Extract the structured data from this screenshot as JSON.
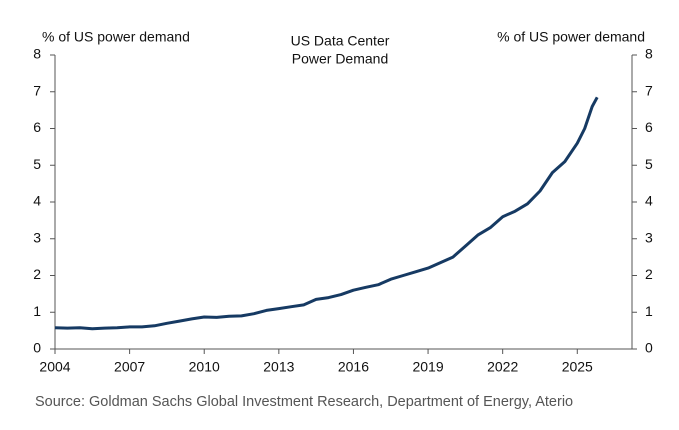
{
  "chart_data": {
    "type": "line",
    "title": [
      "US Data Center",
      "Power Demand"
    ],
    "ylabel": "% of US power demand",
    "y2label": "% of US power demand",
    "source": "Source: Goldman Sachs Global Investment Research, Department of Energy, Aterio",
    "x": [
      2004,
      2004.5,
      2005,
      2005.5,
      2006,
      2006.5,
      2007,
      2007.5,
      2008,
      2008.5,
      2009,
      2009.5,
      2010,
      2010.5,
      2011,
      2011.5,
      2012,
      2012.5,
      2013,
      2013.5,
      2014,
      2014.5,
      2015,
      2015.5,
      2016,
      2016.5,
      2017,
      2017.5,
      2018,
      2018.5,
      2019,
      2019.5,
      2020,
      2020.5,
      2021,
      2021.5,
      2022,
      2022.5,
      2023,
      2023.5,
      2024,
      2024.5,
      2025,
      2025.3,
      2025.6,
      2025.8
    ],
    "series": [
      {
        "name": "US Data Center Power Demand",
        "color": "#163a63",
        "values": [
          0.58,
          0.57,
          0.58,
          0.55,
          0.57,
          0.58,
          0.6,
          0.6,
          0.63,
          0.7,
          0.76,
          0.82,
          0.87,
          0.86,
          0.89,
          0.9,
          0.96,
          1.05,
          1.1,
          1.15,
          1.2,
          1.35,
          1.4,
          1.48,
          1.6,
          1.68,
          1.75,
          1.9,
          2.0,
          2.1,
          2.2,
          2.35,
          2.5,
          2.8,
          3.1,
          3.3,
          3.6,
          3.75,
          3.95,
          4.3,
          4.8,
          5.1,
          5.6,
          6.0,
          6.6,
          6.85
        ]
      }
    ],
    "xlim": [
      2004,
      2027.2
    ],
    "xticks": [
      2004,
      2007,
      2010,
      2013,
      2016,
      2019,
      2022,
      2025
    ],
    "ylim": [
      0,
      8
    ],
    "yticks": [
      0,
      1,
      2,
      3,
      4,
      5,
      6,
      7,
      8
    ],
    "y2lim": [
      0,
      8
    ],
    "y2ticks": [
      0,
      1,
      2,
      3,
      4,
      5,
      6,
      7,
      8
    ]
  }
}
